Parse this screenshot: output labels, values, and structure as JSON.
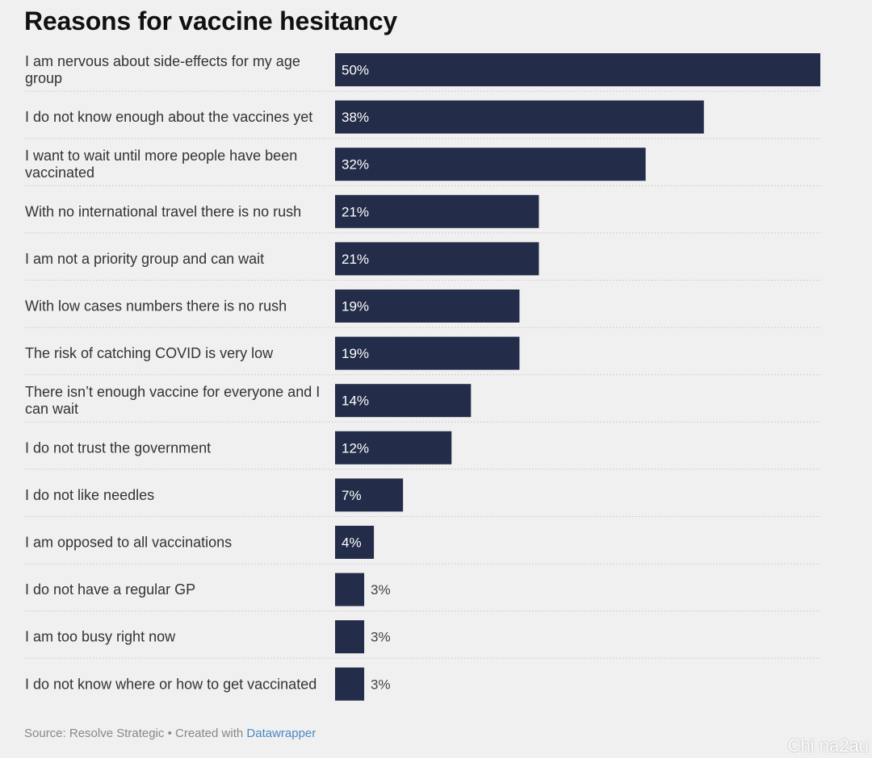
{
  "header": {
    "title": "Reasons for vaccine hesitancy"
  },
  "footer": {
    "source_text": "Source: Resolve Strategic • Created with ",
    "link_text": "Datawrapper"
  },
  "watermark": "Chi na2au",
  "colors": {
    "bar": "#232c48",
    "background": "#f0f0f0",
    "link": "#4a89c4"
  },
  "chart_data": {
    "type": "bar",
    "orientation": "horizontal",
    "title": "Reasons for vaccine hesitancy",
    "categories": [
      "I am nervous about side-effects for my age group",
      "I do not know enough about the vaccines yet",
      "I want to wait until more people have been vaccinated",
      "With no international travel there is no rush",
      "I am not a priority group and can wait",
      "With low cases numbers there is no rush",
      "The risk of catching COVID is very low",
      "There isn’t enough vaccine for everyone and I can wait",
      "I do not trust the government",
      "I do not like needles",
      "I am opposed to all vaccinations",
      "I do not have a regular GP",
      "I am too busy right now",
      "I do not know where or how to get vaccinated"
    ],
    "values": [
      50,
      38,
      32,
      21,
      21,
      19,
      19,
      14,
      12,
      7,
      4,
      3,
      3,
      3
    ],
    "value_labels": [
      "50%",
      "38%",
      "32%",
      "21%",
      "21%",
      "19%",
      "19%",
      "14%",
      "12%",
      "7%",
      "4%",
      "3%",
      "3%",
      "3%"
    ],
    "xlim": [
      0,
      50
    ],
    "grid": false,
    "legend": "none"
  }
}
